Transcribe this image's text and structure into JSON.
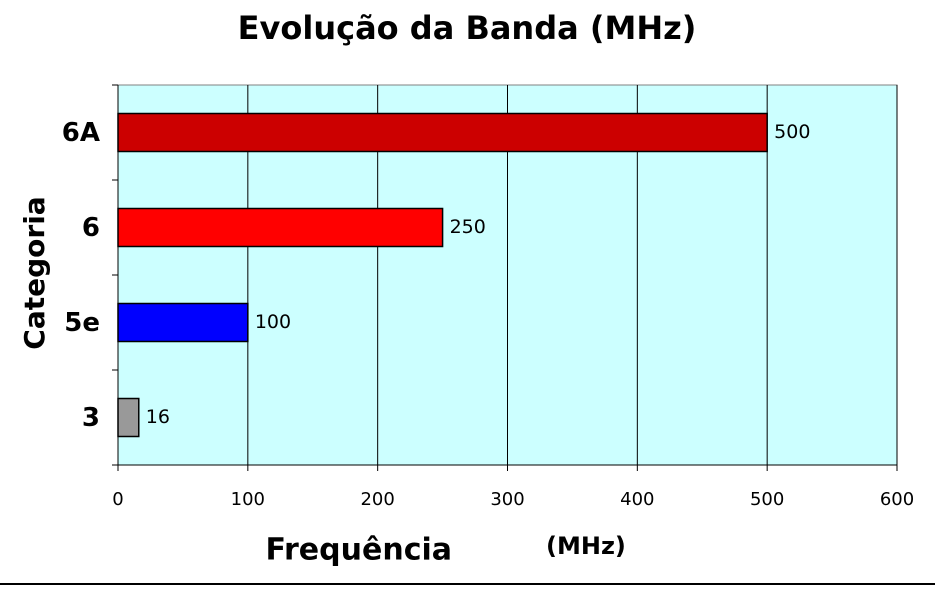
{
  "chart_data": {
    "type": "bar",
    "orientation": "horizontal",
    "title": "Evolução da Banda (MHz)",
    "x_label": "Frequência",
    "x_label_unit": "(MHz)",
    "y_label": "Categoria",
    "categories": [
      "3",
      "5e",
      "6",
      "6A"
    ],
    "values": [
      16,
      100,
      250,
      500
    ],
    "colors": [
      "#999999",
      "#0000ff",
      "#ff0000",
      "#cc0000"
    ],
    "xlim": [
      0,
      600
    ],
    "xticks": [
      0,
      100,
      200,
      300,
      400,
      500,
      600
    ],
    "grid": true,
    "background": "#ccffff"
  }
}
